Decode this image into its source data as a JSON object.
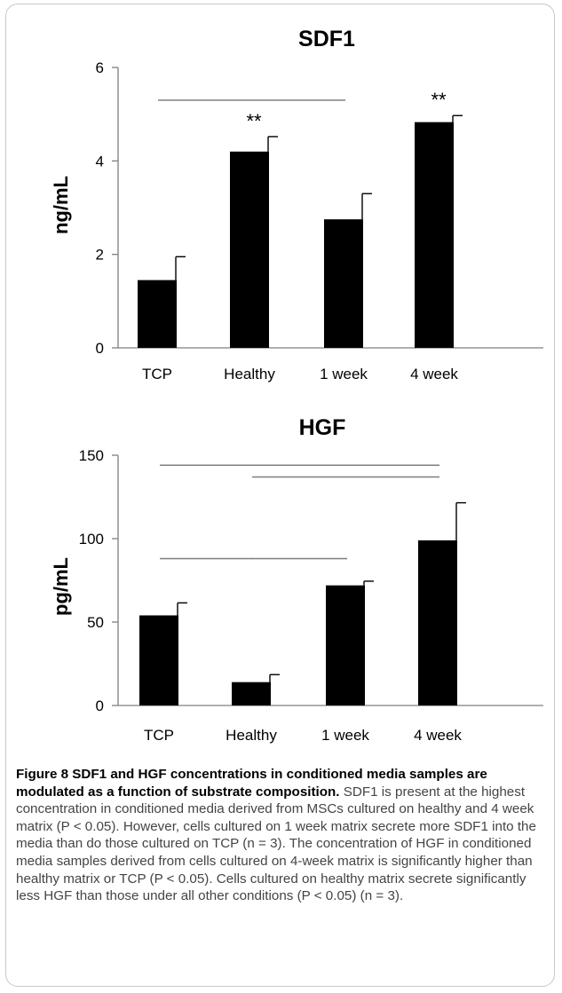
{
  "chart_data": [
    {
      "type": "bar",
      "title": "SDF1",
      "ylabel": "ng/mL",
      "xlabel": "",
      "categories": [
        "TCP",
        "Healthy",
        "1 week",
        "4 week"
      ],
      "values": [
        1.45,
        4.2,
        2.75,
        4.83
      ],
      "error": [
        0.5,
        0.32,
        0.55,
        0.14
      ],
      "ylim": [
        0,
        6
      ],
      "yticks": [
        "0",
        "2",
        "4",
        "6"
      ],
      "ytick_values": [
        0,
        2,
        4,
        6
      ],
      "annotations": [
        {
          "category": "Healthy",
          "text": "**"
        },
        {
          "category": "4 week",
          "text": "**"
        }
      ],
      "significance_lines": [
        {
          "from": "TCP",
          "to": "1 week",
          "y": 5.3
        }
      ],
      "grid": false
    },
    {
      "type": "bar",
      "title": "HGF",
      "ylabel": "pg/mL",
      "xlabel": "",
      "categories": [
        "TCP",
        "Healthy",
        "1 week",
        "4 week"
      ],
      "values": [
        54,
        14,
        72,
        99
      ],
      "error": [
        7.5,
        4.5,
        2.5,
        22.5
      ],
      "ylim": [
        0,
        150
      ],
      "yticks": [
        "0",
        "50",
        "100",
        "150"
      ],
      "ytick_values": [
        0,
        50,
        100,
        150
      ],
      "annotations": [],
      "significance_lines": [
        {
          "from": "TCP",
          "to": "4 week",
          "y": 144
        },
        {
          "from": "Healthy",
          "to": "4 week",
          "y": 137
        },
        {
          "from": "TCP",
          "to": "Healthy",
          "y": 88
        },
        {
          "from": "Healthy",
          "to": "1 week",
          "y": 88
        }
      ],
      "grid": false
    }
  ],
  "colors": {
    "bar": "#000000",
    "axis": "#808080",
    "sig_line": "#7f7f7f",
    "frame_border": "#c8c8c8"
  },
  "caption": {
    "title": "Figure 8 SDF1 and HGF concentrations in conditioned media samples are modulated as a function of substrate composition.",
    "text": "SDF1 is present at the highest concentration in conditioned media derived from MSCs cultured on healthy and 4 week matrix (P < 0.05). However, cells cultured on 1 week matrix secrete more SDF1 into the media than do those cultured on TCP (n = 3). The concentration of HGF in conditioned media samples derived from cells cultured on 4-week matrix is significantly higher than healthy matrix or TCP (P < 0.05). Cells cultured on healthy matrix secrete significantly less HGF than those under all other conditions (P < 0.05) (n = 3)."
  }
}
